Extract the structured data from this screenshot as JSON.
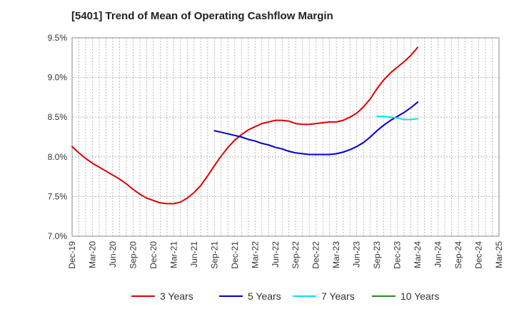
{
  "chart_data": {
    "type": "line",
    "title": "[5401]  Trend of Mean of Operating Cashflow Margin",
    "xlabel": "",
    "ylabel": "",
    "ylim": [
      7.0,
      9.5
    ],
    "yticks": [
      "7.0%",
      "7.5%",
      "8.0%",
      "8.5%",
      "9.0%",
      "9.5%"
    ],
    "ytick_values": [
      7.0,
      7.5,
      8.0,
      8.5,
      9.0,
      9.5
    ],
    "x_tick_labels": [
      "Dec-19",
      "Mar-20",
      "Jun-20",
      "Sep-20",
      "Dec-20",
      "Mar-21",
      "Jun-21",
      "Sep-21",
      "Dec-21",
      "Mar-22",
      "Jun-22",
      "Sep-22",
      "Dec-22",
      "Mar-23",
      "Jun-23",
      "Sep-23",
      "Dec-23",
      "Mar-24",
      "Jun-24",
      "Sep-24",
      "Dec-24",
      "Mar-25"
    ],
    "grid": true,
    "legend_position": "bottom",
    "series": [
      {
        "name": "3 Years",
        "color": "#dd0000",
        "x": [
          "Dec-19",
          "Jan-20",
          "Feb-20",
          "Mar-20",
          "Apr-20",
          "May-20",
          "Jun-20",
          "Jul-20",
          "Aug-20",
          "Sep-20",
          "Oct-20",
          "Nov-20",
          "Dec-20",
          "Jan-21",
          "Feb-21",
          "Mar-21",
          "Apr-21",
          "May-21",
          "Jun-21",
          "Jul-21",
          "Aug-21",
          "Sep-21",
          "Oct-21",
          "Nov-21",
          "Dec-21",
          "Jan-22",
          "Feb-22",
          "Mar-22",
          "Apr-22",
          "May-22",
          "Jun-22",
          "Jul-22",
          "Aug-22",
          "Sep-22",
          "Oct-22",
          "Nov-22",
          "Dec-22",
          "Jan-23",
          "Feb-23",
          "Mar-23",
          "Apr-23",
          "May-23",
          "Jun-23",
          "Jul-23",
          "Aug-23",
          "Sep-23",
          "Oct-23",
          "Nov-23",
          "Dec-23",
          "Jan-24",
          "Feb-24",
          "Mar-24"
        ],
        "values": [
          8.13,
          8.05,
          7.98,
          7.92,
          7.87,
          7.82,
          7.77,
          7.72,
          7.66,
          7.59,
          7.53,
          7.48,
          7.45,
          7.42,
          7.41,
          7.41,
          7.43,
          7.48,
          7.55,
          7.64,
          7.76,
          7.89,
          8.01,
          8.12,
          8.21,
          8.28,
          8.34,
          8.38,
          8.42,
          8.44,
          8.46,
          8.46,
          8.45,
          8.42,
          8.41,
          8.41,
          8.42,
          8.43,
          8.44,
          8.44,
          8.46,
          8.5,
          8.55,
          8.63,
          8.73,
          8.86,
          8.97,
          9.06,
          9.13,
          9.2,
          9.28,
          9.38
        ]
      },
      {
        "name": "5 Years",
        "color": "#0000cc",
        "x": [
          "Sep-21",
          "Oct-21",
          "Nov-21",
          "Dec-21",
          "Jan-22",
          "Feb-22",
          "Mar-22",
          "Apr-22",
          "May-22",
          "Jun-22",
          "Jul-22",
          "Aug-22",
          "Sep-22",
          "Oct-22",
          "Nov-22",
          "Dec-22",
          "Jan-23",
          "Feb-23",
          "Mar-23",
          "Apr-23",
          "May-23",
          "Jun-23",
          "Jul-23",
          "Aug-23",
          "Sep-23",
          "Oct-23",
          "Nov-23",
          "Dec-23",
          "Jan-24",
          "Feb-24",
          "Mar-24"
        ],
        "values": [
          8.33,
          8.31,
          8.29,
          8.27,
          8.25,
          8.22,
          8.2,
          8.17,
          8.15,
          8.12,
          8.1,
          8.07,
          8.05,
          8.04,
          8.03,
          8.03,
          8.03,
          8.03,
          8.04,
          8.06,
          8.09,
          8.13,
          8.18,
          8.25,
          8.33,
          8.4,
          8.46,
          8.51,
          8.56,
          8.62,
          8.69
        ]
      },
      {
        "name": "7 Years",
        "color": "#00e5ee",
        "x": [
          "Sep-23",
          "Oct-23",
          "Nov-23",
          "Dec-23",
          "Jan-24",
          "Feb-24",
          "Mar-24"
        ],
        "values": [
          8.51,
          8.51,
          8.5,
          8.49,
          8.47,
          8.47,
          8.48
        ]
      },
      {
        "name": "10 Years",
        "color": "#228b22",
        "x": [],
        "values": []
      }
    ]
  }
}
